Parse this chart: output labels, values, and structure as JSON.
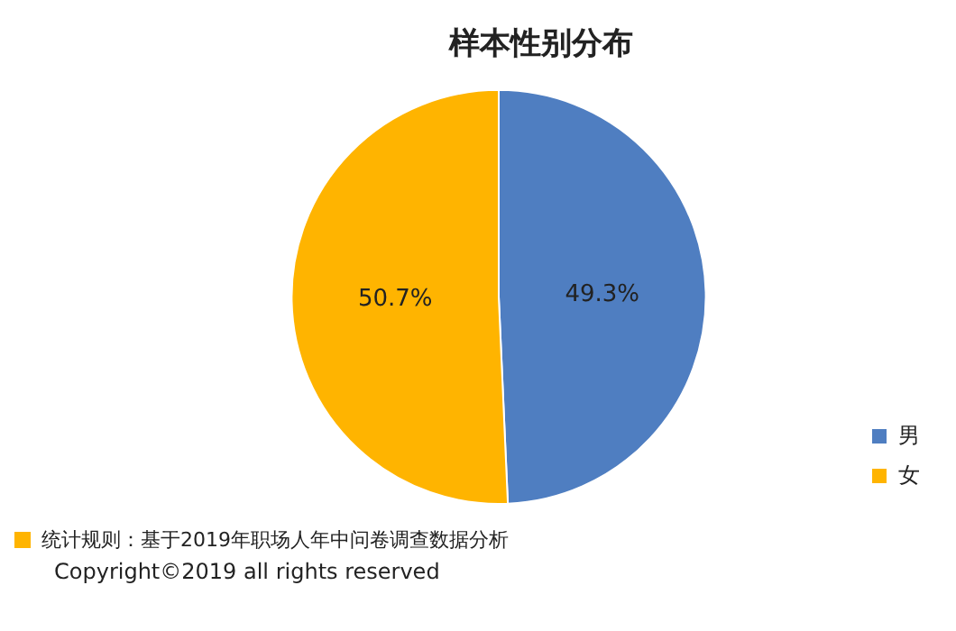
{
  "chart_data": {
    "type": "pie",
    "title": "样本性别分布",
    "categories": [
      "男",
      "女"
    ],
    "values": [
      49.3,
      50.7
    ],
    "colors": [
      "#4f7ec1",
      "#ffb400"
    ],
    "value_labels": [
      "49.3%",
      "50.7%"
    ],
    "legend": "right",
    "annotations": [
      "统计规则：基于2019年职场人年中问卷调查数据分析",
      "Copyright©2019 all rights reserved"
    ]
  }
}
